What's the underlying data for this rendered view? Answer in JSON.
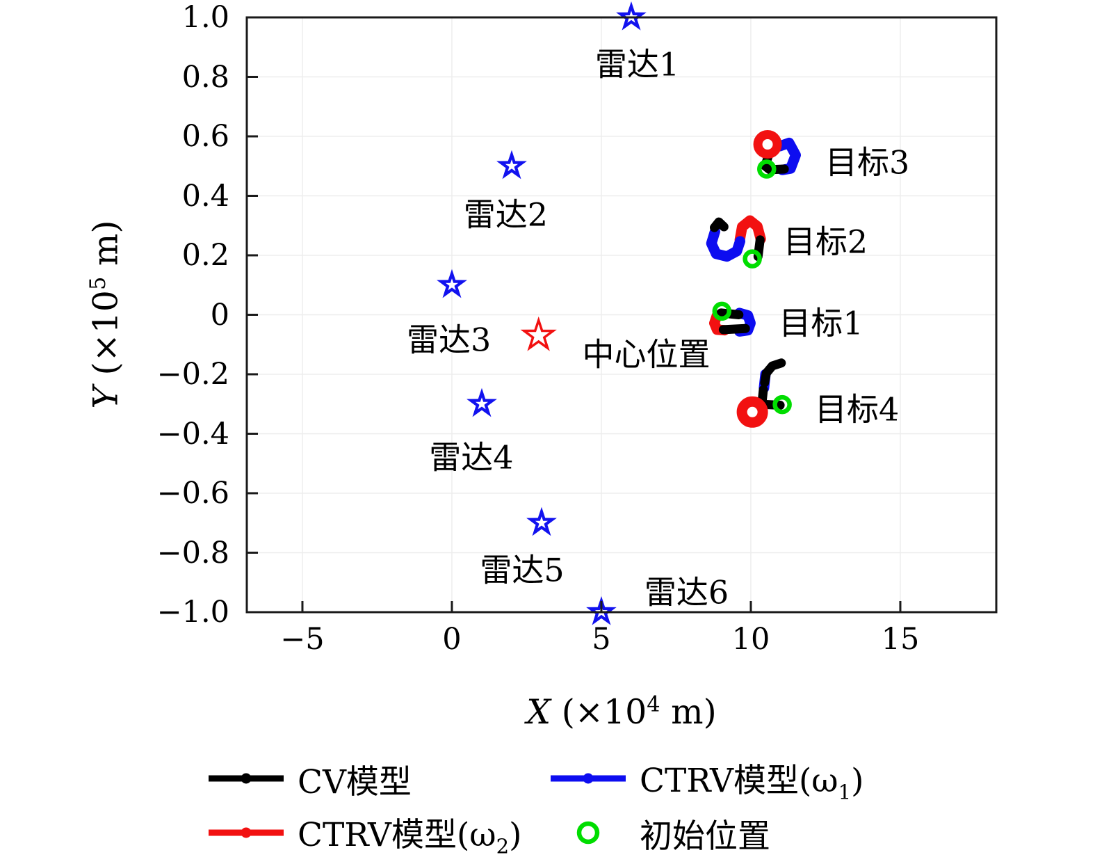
{
  "figure": {
    "background": "#ffffff"
  },
  "colors": {
    "cv": "#000000",
    "ctrv1": "#0d0df0",
    "ctrv2": "#f21111",
    "init": "#00dd00",
    "radar_star": "#1212ef",
    "center_star": "#f21111",
    "grid": "#ededed",
    "axis": "#1a1a1a"
  },
  "axes": {
    "x_label": {
      "var": "X",
      "pre": " (×10",
      "exp": "4",
      "post": " m)"
    },
    "y_label": {
      "var": "Y",
      "pre": " (×10",
      "exp": "5",
      "post": " m)"
    }
  },
  "chart_data": {
    "type": "scatter",
    "title": "",
    "xlabel": "X (×10⁴ m)",
    "ylabel": "Y (×10⁵ m)",
    "xlim": [
      -6.86,
      18.21
    ],
    "ylim": [
      -1.0,
      1.0
    ],
    "grid": true,
    "legend_position": "below",
    "x_ticks": [
      {
        "v": -5,
        "label": "−5"
      },
      {
        "v": 0,
        "label": "0"
      },
      {
        "v": 5,
        "label": "5"
      },
      {
        "v": 10,
        "label": "10"
      },
      {
        "v": 15,
        "label": "15"
      }
    ],
    "y_ticks": [
      {
        "v": 1.0,
        "label": "1.0"
      },
      {
        "v": 0.8,
        "label": "0.8"
      },
      {
        "v": 0.6,
        "label": "0.6"
      },
      {
        "v": 0.4,
        "label": "0.4"
      },
      {
        "v": 0.2,
        "label": "0.2"
      },
      {
        "v": 0,
        "label": "0"
      },
      {
        "v": -0.2,
        "label": "−0.2"
      },
      {
        "v": -0.4,
        "label": "−0.4"
      },
      {
        "v": -0.6,
        "label": "−0.6"
      },
      {
        "v": -0.8,
        "label": "−0.8"
      },
      {
        "v": -1.0,
        "label": "−1.0"
      }
    ],
    "radars": [
      {
        "label": "雷达1",
        "pos": [
          6.0,
          1.0
        ],
        "label_pos": [
          6.2,
          0.84
        ]
      },
      {
        "label": "雷达2",
        "pos": [
          2.0,
          0.5
        ],
        "label_pos": [
          1.8,
          0.335
        ]
      },
      {
        "label": "雷达3",
        "pos": [
          0.0,
          0.1
        ],
        "label_pos": [
          -0.1,
          -0.085
        ]
      },
      {
        "label": "雷达4",
        "pos": [
          1.0,
          -0.3
        ],
        "label_pos": [
          0.65,
          -0.48
        ]
      },
      {
        "label": "雷达5",
        "pos": [
          3.0,
          -0.7
        ],
        "label_pos": [
          2.35,
          -0.86
        ]
      },
      {
        "label": "雷达6",
        "pos": [
          5.0,
          -1.0
        ],
        "label_pos": [
          7.85,
          -0.935
        ]
      }
    ],
    "center": {
      "label": "中心位置",
      "pos": [
        2.9,
        -0.07
      ],
      "label_pos": [
        6.5,
        -0.135
      ]
    },
    "targets": [
      {
        "label": "目标1",
        "label_pos": [
          12.35,
          -0.03
        ],
        "cv": [
          [
            [
              9.0,
              0.006
            ],
            [
              9.6,
              0.0
            ]
          ],
          [
            [
              9.08,
              -0.05
            ],
            [
              9.82,
              -0.046
            ]
          ]
        ],
        "ctrv1": [
          [
            [
              9.62,
              0.006
            ],
            [
              9.9,
              -0.002
            ],
            [
              9.99,
              -0.028
            ],
            [
              9.9,
              -0.052
            ],
            [
              9.62,
              -0.056
            ]
          ]
        ],
        "ctrv2": [
          [
            [
              9.12,
              0.002
            ],
            [
              8.86,
              -0.004
            ],
            [
              8.78,
              -0.028
            ],
            [
              8.87,
              -0.05
            ],
            [
              9.12,
              -0.052
            ]
          ]
        ],
        "init": [
          9.03,
          0.012
        ]
      },
      {
        "label": "目标2",
        "label_pos": [
          12.5,
          0.245
        ],
        "cv": [
          [
            [
              8.78,
              0.293
            ],
            [
              8.93,
              0.312
            ],
            [
              9.1,
              0.296
            ]
          ],
          [
            [
              10.31,
              0.252
            ],
            [
              10.24,
              0.196
            ]
          ]
        ],
        "ctrv1": [
          [
            [
              8.8,
              0.28
            ],
            [
              8.68,
              0.24
            ],
            [
              8.84,
              0.205
            ],
            [
              9.2,
              0.196
            ],
            [
              9.53,
              0.214
            ],
            [
              9.64,
              0.247
            ]
          ]
        ],
        "ctrv2": [
          [
            [
              9.63,
              0.252
            ],
            [
              9.71,
              0.296
            ],
            [
              9.97,
              0.317
            ],
            [
              10.22,
              0.297
            ],
            [
              10.33,
              0.255
            ]
          ]
        ],
        "init": [
          10.05,
          0.188
        ]
      },
      {
        "label": "目标3",
        "label_pos": [
          13.9,
          0.512
        ],
        "cv": [
          [
            [
              10.67,
              0.563
            ],
            [
              10.48,
              0.5
            ],
            [
              10.63,
              0.488
            ],
            [
              11.12,
              0.49
            ]
          ]
        ],
        "ctrv1": [
          [
            [
              10.97,
              0.567
            ],
            [
              11.28,
              0.578
            ],
            [
              11.5,
              0.537
            ],
            [
              11.33,
              0.492
            ],
            [
              11.05,
              0.487
            ]
          ]
        ],
        "ctrv2": [],
        "ctrv2_ring": {
          "c": [
            10.56,
            0.573
          ],
          "r": 14,
          "stroke": 13
        },
        "init": [
          10.53,
          0.49
        ]
      },
      {
        "label": "目标4",
        "label_pos": [
          13.55,
          -0.32
        ],
        "cv": [
          [
            [
              11.02,
              -0.162
            ],
            [
              10.72,
              -0.172
            ],
            [
              10.52,
              -0.196
            ],
            [
              10.46,
              -0.228
            ]
          ],
          [
            [
              10.42,
              -0.252
            ],
            [
              10.37,
              -0.298
            ]
          ],
          [
            [
              10.17,
              -0.3
            ],
            [
              10.98,
              -0.304
            ]
          ]
        ],
        "ctrv1": [
          [
            [
              10.49,
              -0.2
            ],
            [
              10.44,
              -0.246
            ]
          ]
        ],
        "ctrv2": [],
        "ctrv2_ring": {
          "c": [
            10.05,
            -0.327
          ],
          "r": 15,
          "stroke": 15
        },
        "init": [
          11.05,
          -0.302
        ]
      }
    ]
  },
  "legend": {
    "items": [
      {
        "label": "CV模型",
        "marker": "line",
        "color_key": "cv"
      },
      {
        "label": "CTRV模型(ω",
        "sub": "1",
        "label_end": ")",
        "marker": "line",
        "color_key": "ctrv1"
      },
      {
        "label": "CTRV模型(ω",
        "sub": "2",
        "label_end": ")",
        "marker": "line",
        "color_key": "ctrv2"
      },
      {
        "label": "初始位置",
        "marker": "circle",
        "color_key": "init"
      }
    ]
  }
}
